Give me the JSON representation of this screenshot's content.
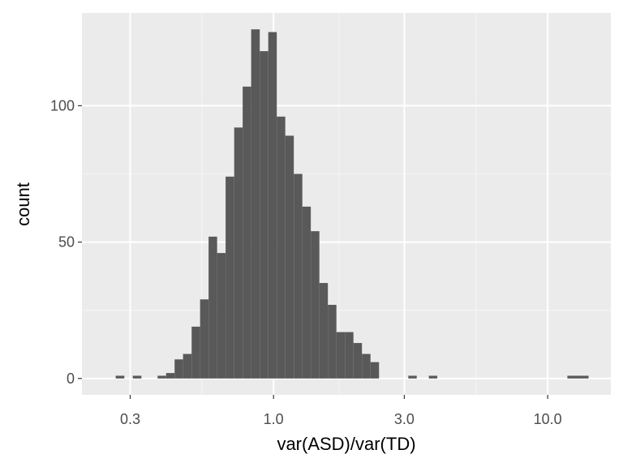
{
  "chart_data": {
    "type": "bar",
    "subtype": "histogram",
    "title": "",
    "xlabel": "var(ASD)/var(TD)",
    "ylabel": "count",
    "x_scale": "log10",
    "xlim": [
      0.2,
      17.0
    ],
    "ylim": [
      -6,
      134
    ],
    "x_ticks": [
      {
        "value": 0.3,
        "label": "0.3"
      },
      {
        "value": 1.0,
        "label": "1.0"
      },
      {
        "value": 3.0,
        "label": "3.0"
      },
      {
        "value": 10.0,
        "label": "10.0"
      }
    ],
    "y_ticks": [
      {
        "value": 0,
        "label": "0"
      },
      {
        "value": 50,
        "label": "50"
      },
      {
        "value": 100,
        "label": "100"
      }
    ],
    "bins": [
      {
        "x0": 0.2656,
        "x1": 0.2856,
        "count": 1
      },
      {
        "x0": 0.3066,
        "x1": 0.3296,
        "count": 1
      },
      {
        "x0": 0.3776,
        "x1": 0.4056,
        "count": 1
      },
      {
        "x0": 0.4056,
        "x1": 0.4356,
        "count": 2
      },
      {
        "x0": 0.4356,
        "x1": 0.4676,
        "count": 7
      },
      {
        "x0": 0.4676,
        "x1": 0.5026,
        "count": 9
      },
      {
        "x0": 0.5026,
        "x1": 0.5396,
        "count": 19
      },
      {
        "x0": 0.5396,
        "x1": 0.5796,
        "count": 29
      },
      {
        "x0": 0.5796,
        "x1": 0.6226,
        "count": 52
      },
      {
        "x0": 0.6226,
        "x1": 0.6686,
        "count": 46
      },
      {
        "x0": 0.6686,
        "x1": 0.7186,
        "count": 74
      },
      {
        "x0": 0.7186,
        "x1": 0.7716,
        "count": 92
      },
      {
        "x0": 0.7716,
        "x1": 0.8286,
        "count": 107
      },
      {
        "x0": 0.8286,
        "x1": 0.8906,
        "count": 128
      },
      {
        "x0": 0.8906,
        "x1": 0.9566,
        "count": 120
      },
      {
        "x0": 0.9566,
        "x1": 1.0276,
        "count": 127
      },
      {
        "x0": 1.0276,
        "x1": 1.1036,
        "count": 96
      },
      {
        "x0": 1.1036,
        "x1": 1.1856,
        "count": 89
      },
      {
        "x0": 1.1856,
        "x1": 1.2736,
        "count": 75
      },
      {
        "x0": 1.2736,
        "x1": 1.3676,
        "count": 63
      },
      {
        "x0": 1.3676,
        "x1": 1.4696,
        "count": 54
      },
      {
        "x0": 1.4696,
        "x1": 1.5786,
        "count": 35
      },
      {
        "x0": 1.5786,
        "x1": 1.6956,
        "count": 27
      },
      {
        "x0": 1.6956,
        "x1": 1.8216,
        "count": 17
      },
      {
        "x0": 1.8216,
        "x1": 1.9566,
        "count": 17
      },
      {
        "x0": 1.9566,
        "x1": 2.1016,
        "count": 13
      },
      {
        "x0": 2.1016,
        "x1": 2.2576,
        "count": 9
      },
      {
        "x0": 2.2576,
        "x1": 2.4256,
        "count": 6
      },
      {
        "x0": 3.1016,
        "x1": 3.3296,
        "count": 1
      },
      {
        "x0": 3.6856,
        "x1": 3.9566,
        "count": 1
      },
      {
        "x0": 11.8006,
        "x1": 14.1006,
        "count": 1
      }
    ],
    "colors": {
      "bar_fill": "#595959",
      "panel_bg": "#ebebeb",
      "grid_major": "#ffffff",
      "grid_minor": "#f5f5f5",
      "tick_mark": "#333333"
    }
  }
}
